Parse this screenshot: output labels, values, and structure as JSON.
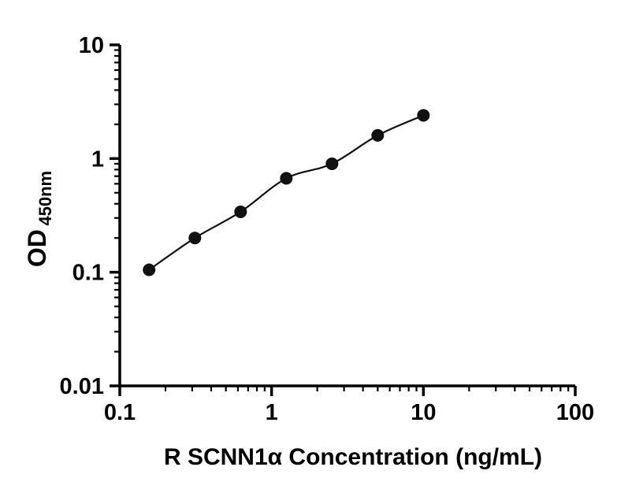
{
  "chart_data": {
    "type": "scatter",
    "subtype": "log-log standard curve with connecting line",
    "x": [
      0.156,
      0.3125,
      0.625,
      1.25,
      2.5,
      5,
      10
    ],
    "y": [
      0.105,
      0.2,
      0.34,
      0.67,
      0.9,
      1.6,
      2.4
    ],
    "title": "",
    "xlabel": "R SCNN1α Concentration (ng/mL)",
    "ylabel_main": "OD",
    "ylabel_sub": "450nm",
    "xscale": "log",
    "yscale": "log",
    "xlim": [
      0.1,
      100
    ],
    "ylim": [
      0.01,
      10
    ],
    "x_tick_values": [
      0.1,
      1,
      10,
      100
    ],
    "x_tick_labels": [
      "0.1",
      "1",
      "10",
      "100"
    ],
    "y_tick_values": [
      0.01,
      0.1,
      1,
      10
    ],
    "y_tick_labels": [
      "0.01",
      "0.1",
      "1",
      "10"
    ],
    "grid": false,
    "legend": false,
    "marker": "filled-circle",
    "marker_color": "#111111",
    "line_color": "#111111",
    "axis_color": "#000000",
    "background_color": "#ffffff"
  }
}
